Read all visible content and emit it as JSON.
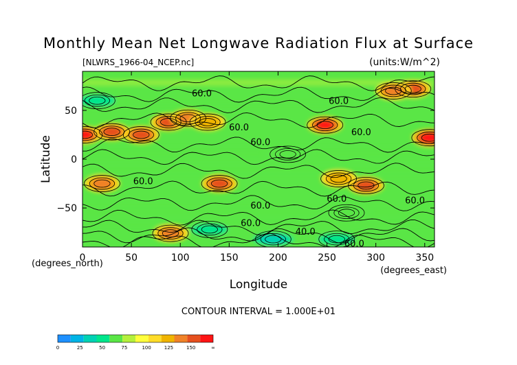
{
  "chart_data": {
    "type": "heatmap",
    "title": "Monthly Mean Net Longwave Radiation Flux at Surface",
    "source_file": "[NLWRS_1966-04_NCEP.nc]",
    "units": "(units:W/m^2)",
    "xlabel": "Longitude",
    "ylabel": "Latitude",
    "x_unit_label": "(degrees_east)",
    "y_unit_label": "(degrees_north)",
    "xlim": [
      0,
      360
    ],
    "ylim": [
      -90,
      90
    ],
    "x_ticks": [
      0,
      50,
      100,
      150,
      200,
      250,
      300,
      350
    ],
    "y_ticks": [
      50,
      0,
      -50
    ],
    "x_tick_labels": [
      "0",
      "50",
      "100",
      "150",
      "200",
      "250",
      "300",
      "350"
    ],
    "y_tick_labels": [
      "50",
      "0",
      "−50"
    ],
    "contour_interval": "CONTOUR INTERVAL = 1.000E+01",
    "contour_labels": [
      {
        "text": "60.0",
        "lon": 122,
        "lat": 68
      },
      {
        "text": "60.0",
        "lon": 262,
        "lat": 60
      },
      {
        "text": "60.0",
        "lon": 160,
        "lat": 33
      },
      {
        "text": "60.0",
        "lon": 285,
        "lat": 28
      },
      {
        "text": "60.0",
        "lon": 182,
        "lat": 18
      },
      {
        "text": "60.0",
        "lon": 62,
        "lat": -22
      },
      {
        "text": "60.0",
        "lon": 260,
        "lat": -40
      },
      {
        "text": "60.0",
        "lon": 340,
        "lat": -42
      },
      {
        "text": "60.0",
        "lon": 182,
        "lat": -47
      },
      {
        "text": "60.0",
        "lon": 172,
        "lat": -65
      },
      {
        "text": "40.0",
        "lon": 228,
        "lat": -74
      },
      {
        "text": "60.0",
        "lon": 278,
        "lat": -86
      }
    ],
    "colorbar": {
      "ticks": [
        "0",
        "25",
        "50",
        "75",
        "100",
        "125",
        "150",
        "∞"
      ],
      "colors": [
        "#1e90ff",
        "#00b4e6",
        "#00d2b4",
        "#00e68c",
        "#5ae646",
        "#b4f03c",
        "#ffff3c",
        "#ffdc28",
        "#f0b400",
        "#f08228",
        "#e6501e",
        "#ff1414"
      ]
    },
    "hotspots": [
      {
        "lon": 2,
        "lat": 25,
        "value": 140
      },
      {
        "lon": 30,
        "lat": 28,
        "value": 120
      },
      {
        "lon": 60,
        "lat": 25,
        "value": 120
      },
      {
        "lon": 88,
        "lat": 38,
        "value": 120
      },
      {
        "lon": 108,
        "lat": 42,
        "value": 110
      },
      {
        "lon": 128,
        "lat": 38,
        "value": 95
      },
      {
        "lon": 248,
        "lat": 35,
        "value": 140
      },
      {
        "lon": 355,
        "lat": 22,
        "value": 145
      },
      {
        "lon": 338,
        "lat": 72,
        "value": 120
      },
      {
        "lon": 318,
        "lat": 70,
        "value": 110
      },
      {
        "lon": 140,
        "lat": -25,
        "value": 125
      },
      {
        "lon": 20,
        "lat": -25,
        "value": 110
      },
      {
        "lon": 290,
        "lat": -27,
        "value": 130
      },
      {
        "lon": 262,
        "lat": -20,
        "value": 100
      },
      {
        "lon": 90,
        "lat": -76,
        "value": 110
      }
    ],
    "coldspots": [
      {
        "lon": 210,
        "lat": 5,
        "value": 45
      },
      {
        "lon": 270,
        "lat": -55,
        "value": 45
      },
      {
        "lon": 15,
        "lat": 60,
        "value": 40
      },
      {
        "lon": 195,
        "lat": -82,
        "value": 20
      },
      {
        "lon": 130,
        "lat": -72,
        "value": 35
      },
      {
        "lon": 260,
        "lat": -82,
        "value": 35
      }
    ]
  }
}
